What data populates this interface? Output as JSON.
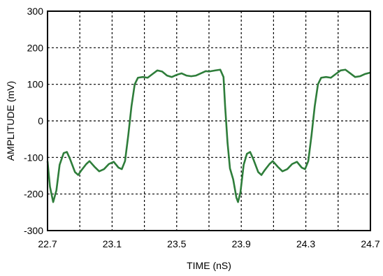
{
  "chart_data": {
    "type": "line",
    "xlabel": "TIME (nS)",
    "ylabel": "AMPLITUDE (mV)",
    "xlim": [
      22.7,
      24.7
    ],
    "xticks": [
      22.7,
      23.1,
      23.5,
      23.9,
      24.3,
      24.7
    ],
    "minor_xgrid": [
      22.9,
      23.3,
      23.7,
      24.1,
      24.5
    ],
    "ylim": [
      -300,
      300
    ],
    "yticks": [
      -300,
      -200,
      -100,
      0,
      100,
      200,
      300
    ],
    "grid": true,
    "x": [
      22.7,
      22.715,
      22.735,
      22.755,
      22.775,
      22.8,
      22.82,
      22.84,
      22.87,
      22.89,
      22.91,
      22.94,
      22.96,
      22.99,
      23.02,
      23.05,
      23.08,
      23.11,
      23.14,
      23.16,
      23.18,
      23.2,
      23.22,
      23.24,
      23.26,
      23.29,
      23.32,
      23.35,
      23.38,
      23.41,
      23.44,
      23.47,
      23.5,
      23.53,
      23.56,
      23.59,
      23.62,
      23.65,
      23.68,
      23.7,
      23.74,
      23.77,
      23.79,
      23.8,
      23.815,
      23.83,
      23.85,
      23.87,
      23.88,
      23.895,
      23.915,
      23.935,
      23.955,
      23.975,
      24.005,
      24.025,
      24.045,
      24.075,
      24.095,
      24.125,
      24.155,
      24.185,
      24.215,
      24.245,
      24.275,
      24.295,
      24.315,
      24.335,
      24.355,
      24.375,
      24.395,
      24.425,
      24.455,
      24.485,
      24.515,
      24.545,
      24.575,
      24.605,
      24.635,
      24.665,
      24.7
    ],
    "series": [
      {
        "color": "#2e7d3a",
        "values": [
          -110,
          -180,
          -222,
          -190,
          -120,
          -88,
          -85,
          -105,
          -140,
          -148,
          -135,
          -118,
          -110,
          -125,
          -138,
          -132,
          -118,
          -112,
          -128,
          -132,
          -110,
          -40,
          40,
          100,
          118,
          120,
          118,
          128,
          138,
          135,
          124,
          120,
          126,
          130,
          124,
          122,
          124,
          130,
          136,
          135,
          138,
          140,
          120,
          40,
          -60,
          -130,
          -160,
          -210,
          -222,
          -195,
          -120,
          -90,
          -85,
          -105,
          -140,
          -148,
          -135,
          -118,
          -110,
          -125,
          -138,
          -132,
          -118,
          -112,
          -128,
          -132,
          -110,
          -40,
          40,
          100,
          118,
          120,
          118,
          128,
          138,
          140,
          130,
          120,
          122,
          128,
          132
        ]
      }
    ]
  }
}
